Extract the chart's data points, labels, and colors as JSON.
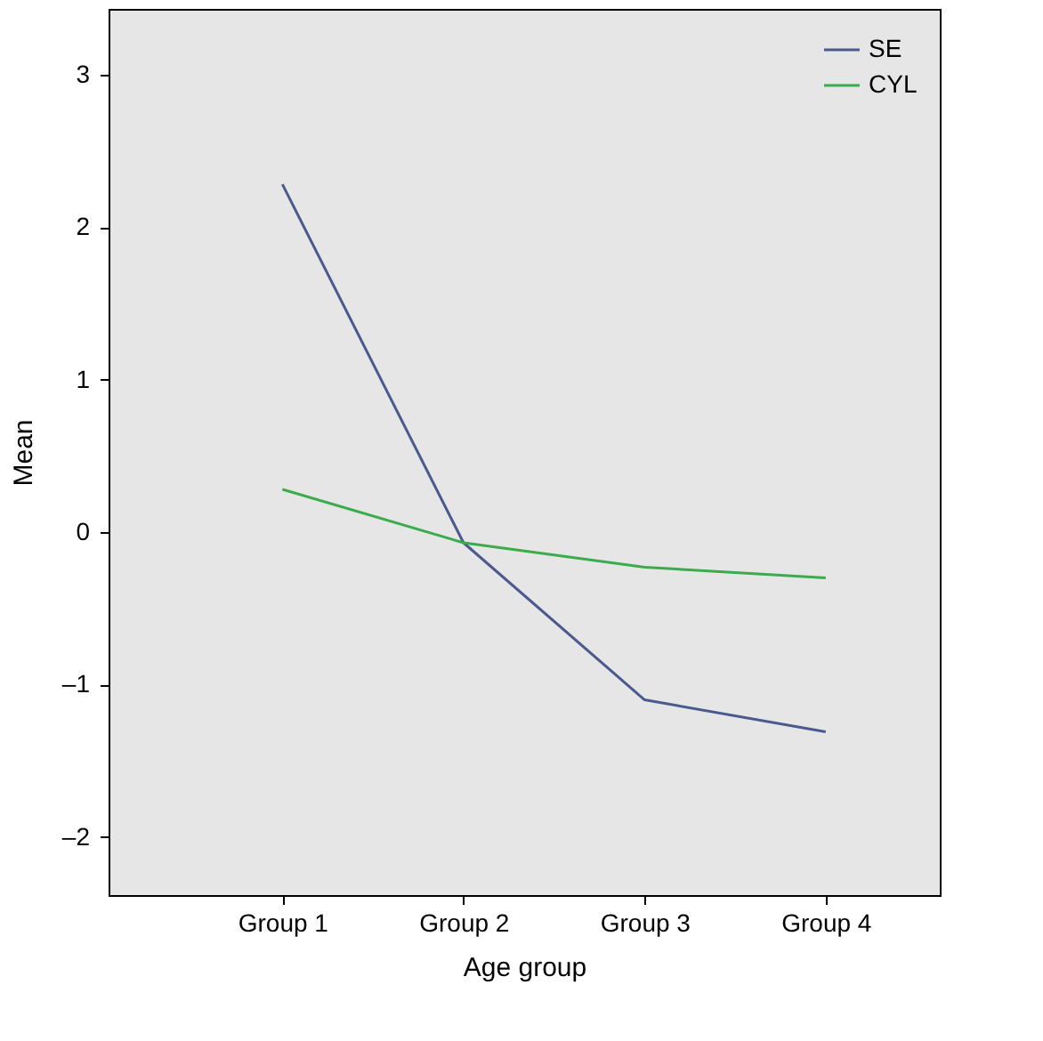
{
  "chart_data": {
    "type": "line",
    "xlabel": "Age group",
    "ylabel": "Mean",
    "categories": [
      "Group 1",
      "Group 2",
      "Group 3",
      "Group 4"
    ],
    "series": [
      {
        "name": "SE",
        "color": "#4b5a8e",
        "values": [
          2.28,
          -0.07,
          -1.1,
          -1.31
        ]
      },
      {
        "name": "CYL",
        "color": "#3aac4c",
        "values": [
          0.28,
          -0.07,
          -0.23,
          -0.3
        ]
      }
    ],
    "ylim": [
      -2.38,
      3.43
    ],
    "yticks": [
      {
        "value": -2,
        "label": "–2"
      },
      {
        "value": -1,
        "label": "–1"
      },
      0,
      1,
      2,
      3
    ],
    "grid": false,
    "legend": "top right",
    "marker": "none",
    "line_style": "solid"
  }
}
